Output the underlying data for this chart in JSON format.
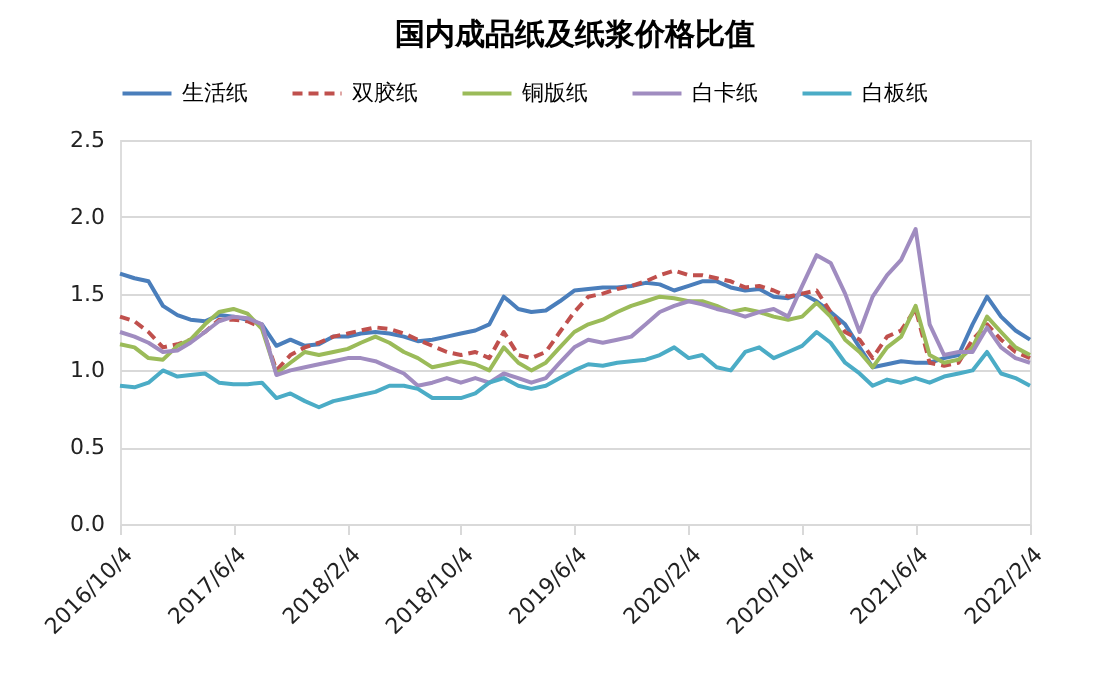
{
  "chart_data": {
    "type": "line",
    "title": "国内成品纸及纸浆价格比值",
    "x": [
      "2016-10-04",
      "2016-11-04",
      "2016-12-04",
      "2017-01-04",
      "2017-02-04",
      "2017-03-04",
      "2017-04-04",
      "2017-05-04",
      "2017-06-04",
      "2017-07-04",
      "2017-08-04",
      "2017-09-04",
      "2017-10-04",
      "2017-11-04",
      "2017-12-04",
      "2018-01-04",
      "2018-02-04",
      "2018-03-04",
      "2018-04-04",
      "2018-05-04",
      "2018-06-04",
      "2018-07-04",
      "2018-08-04",
      "2018-09-04",
      "2018-10-04",
      "2018-11-04",
      "2018-12-04",
      "2019-01-04",
      "2019-02-04",
      "2019-03-04",
      "2019-04-04",
      "2019-05-04",
      "2019-06-04",
      "2019-07-04",
      "2019-08-04",
      "2019-09-04",
      "2019-10-04",
      "2019-11-04",
      "2019-12-04",
      "2020-01-04",
      "2020-02-04",
      "2020-03-04",
      "2020-04-04",
      "2020-05-04",
      "2020-06-04",
      "2020-07-04",
      "2020-08-04",
      "2020-09-04",
      "2020-10-04",
      "2020-11-04",
      "2020-12-04",
      "2021-01-04",
      "2021-02-04",
      "2021-03-04",
      "2021-04-04",
      "2021-05-04",
      "2021-06-04",
      "2021-07-04",
      "2021-08-04",
      "2021-09-04",
      "2021-10-04",
      "2021-11-04",
      "2021-12-04",
      "2022-01-04",
      "2022-02-04"
    ],
    "series": [
      {
        "name": "生活纸",
        "color": "#4a7ebb",
        "line_style": "solid",
        "values": [
          1.63,
          1.6,
          1.58,
          1.42,
          1.36,
          1.33,
          1.32,
          1.36,
          1.35,
          1.33,
          1.3,
          1.16,
          1.2,
          1.16,
          1.17,
          1.22,
          1.22,
          1.24,
          1.25,
          1.24,
          1.22,
          1.19,
          1.2,
          1.22,
          1.24,
          1.26,
          1.3,
          1.48,
          1.4,
          1.38,
          1.39,
          1.45,
          1.52,
          1.53,
          1.54,
          1.54,
          1.55,
          1.57,
          1.56,
          1.52,
          1.55,
          1.58,
          1.58,
          1.54,
          1.52,
          1.53,
          1.48,
          1.47,
          1.5,
          1.45,
          1.38,
          1.3,
          1.15,
          1.02,
          1.04,
          1.06,
          1.05,
          1.05,
          1.08,
          1.1,
          1.3,
          1.48,
          1.35,
          1.26,
          1.2
        ]
      },
      {
        "name": "双胶纸",
        "color": "#c0504d",
        "line_style": "dashed",
        "values": [
          1.35,
          1.32,
          1.25,
          1.15,
          1.17,
          1.2,
          1.25,
          1.33,
          1.33,
          1.32,
          1.28,
          1.0,
          1.1,
          1.15,
          1.18,
          1.22,
          1.24,
          1.26,
          1.28,
          1.27,
          1.24,
          1.2,
          1.16,
          1.12,
          1.1,
          1.12,
          1.08,
          1.25,
          1.1,
          1.08,
          1.12,
          1.25,
          1.38,
          1.48,
          1.5,
          1.53,
          1.55,
          1.58,
          1.62,
          1.65,
          1.62,
          1.62,
          1.6,
          1.58,
          1.54,
          1.55,
          1.52,
          1.48,
          1.5,
          1.52,
          1.38,
          1.25,
          1.2,
          1.08,
          1.22,
          1.26,
          1.4,
          1.05,
          1.03,
          1.05,
          1.2,
          1.3,
          1.2,
          1.12,
          1.08
        ]
      },
      {
        "name": "铜版纸",
        "color": "#9bbb59",
        "line_style": "solid",
        "values": [
          1.17,
          1.15,
          1.08,
          1.07,
          1.16,
          1.2,
          1.3,
          1.38,
          1.4,
          1.37,
          1.27,
          0.98,
          1.05,
          1.12,
          1.1,
          1.12,
          1.14,
          1.18,
          1.22,
          1.18,
          1.12,
          1.08,
          1.02,
          1.04,
          1.06,
          1.04,
          1.0,
          1.15,
          1.05,
          1.0,
          1.05,
          1.15,
          1.25,
          1.3,
          1.33,
          1.38,
          1.42,
          1.45,
          1.48,
          1.47,
          1.45,
          1.45,
          1.42,
          1.38,
          1.4,
          1.38,
          1.35,
          1.33,
          1.35,
          1.44,
          1.35,
          1.2,
          1.12,
          1.02,
          1.15,
          1.22,
          1.42,
          1.1,
          1.05,
          1.07,
          1.15,
          1.35,
          1.25,
          1.15,
          1.1
        ]
      },
      {
        "name": "白卡纸",
        "color": "#a08cc0",
        "line_style": "solid",
        "values": [
          1.25,
          1.22,
          1.18,
          1.12,
          1.13,
          1.18,
          1.25,
          1.32,
          1.35,
          1.34,
          1.3,
          0.97,
          1.0,
          1.02,
          1.04,
          1.06,
          1.08,
          1.08,
          1.06,
          1.02,
          0.98,
          0.9,
          0.92,
          0.95,
          0.92,
          0.95,
          0.92,
          0.98,
          0.95,
          0.92,
          0.95,
          1.05,
          1.15,
          1.2,
          1.18,
          1.2,
          1.22,
          1.3,
          1.38,
          1.42,
          1.45,
          1.43,
          1.4,
          1.38,
          1.35,
          1.38,
          1.4,
          1.35,
          1.55,
          1.75,
          1.7,
          1.5,
          1.25,
          1.48,
          1.62,
          1.72,
          1.92,
          1.3,
          1.1,
          1.12,
          1.12,
          1.28,
          1.15,
          1.08,
          1.05
        ]
      },
      {
        "name": "白板纸",
        "color": "#4bacc6",
        "line_style": "solid",
        "values": [
          0.9,
          0.89,
          0.92,
          1.0,
          0.96,
          0.97,
          0.98,
          0.92,
          0.91,
          0.91,
          0.92,
          0.82,
          0.85,
          0.8,
          0.76,
          0.8,
          0.82,
          0.84,
          0.86,
          0.9,
          0.9,
          0.88,
          0.82,
          0.82,
          0.82,
          0.85,
          0.92,
          0.95,
          0.9,
          0.88,
          0.9,
          0.95,
          1.0,
          1.04,
          1.03,
          1.05,
          1.06,
          1.07,
          1.1,
          1.15,
          1.08,
          1.1,
          1.02,
          1.0,
          1.12,
          1.15,
          1.08,
          1.12,
          1.16,
          1.25,
          1.18,
          1.05,
          0.98,
          0.9,
          0.94,
          0.92,
          0.95,
          0.92,
          0.96,
          0.98,
          1.0,
          1.12,
          0.98,
          0.95,
          0.9
        ]
      }
    ],
    "xlim": [
      "2016-10-04",
      "2022-02-04"
    ],
    "xticks": [
      {
        "value": "2016-10-04",
        "label": "2016/10/4"
      },
      {
        "value": "2017-06-04",
        "label": "2017/6/4"
      },
      {
        "value": "2018-02-04",
        "label": "2018/2/4"
      },
      {
        "value": "2018-10-04",
        "label": "2018/10/4"
      },
      {
        "value": "2019-06-04",
        "label": "2019/6/4"
      },
      {
        "value": "2020-02-04",
        "label": "2020/2/4"
      },
      {
        "value": "2020-10-04",
        "label": "2020/10/4"
      },
      {
        "value": "2021-06-04",
        "label": "2021/6/4"
      },
      {
        "value": "2022-02-04",
        "label": "2022/2/4"
      }
    ],
    "ylim": [
      0,
      2.5
    ],
    "yticks": [
      {
        "value": 0,
        "label": "0.0"
      },
      {
        "value": 0.5,
        "label": "0.5"
      },
      {
        "value": 1,
        "label": "1.0"
      },
      {
        "value": 1.5,
        "label": "1.5"
      },
      {
        "value": 2,
        "label": "2.0"
      },
      {
        "value": 2.5,
        "label": "2.5"
      }
    ],
    "grid": "y",
    "legend": "top",
    "marker": "none"
  }
}
